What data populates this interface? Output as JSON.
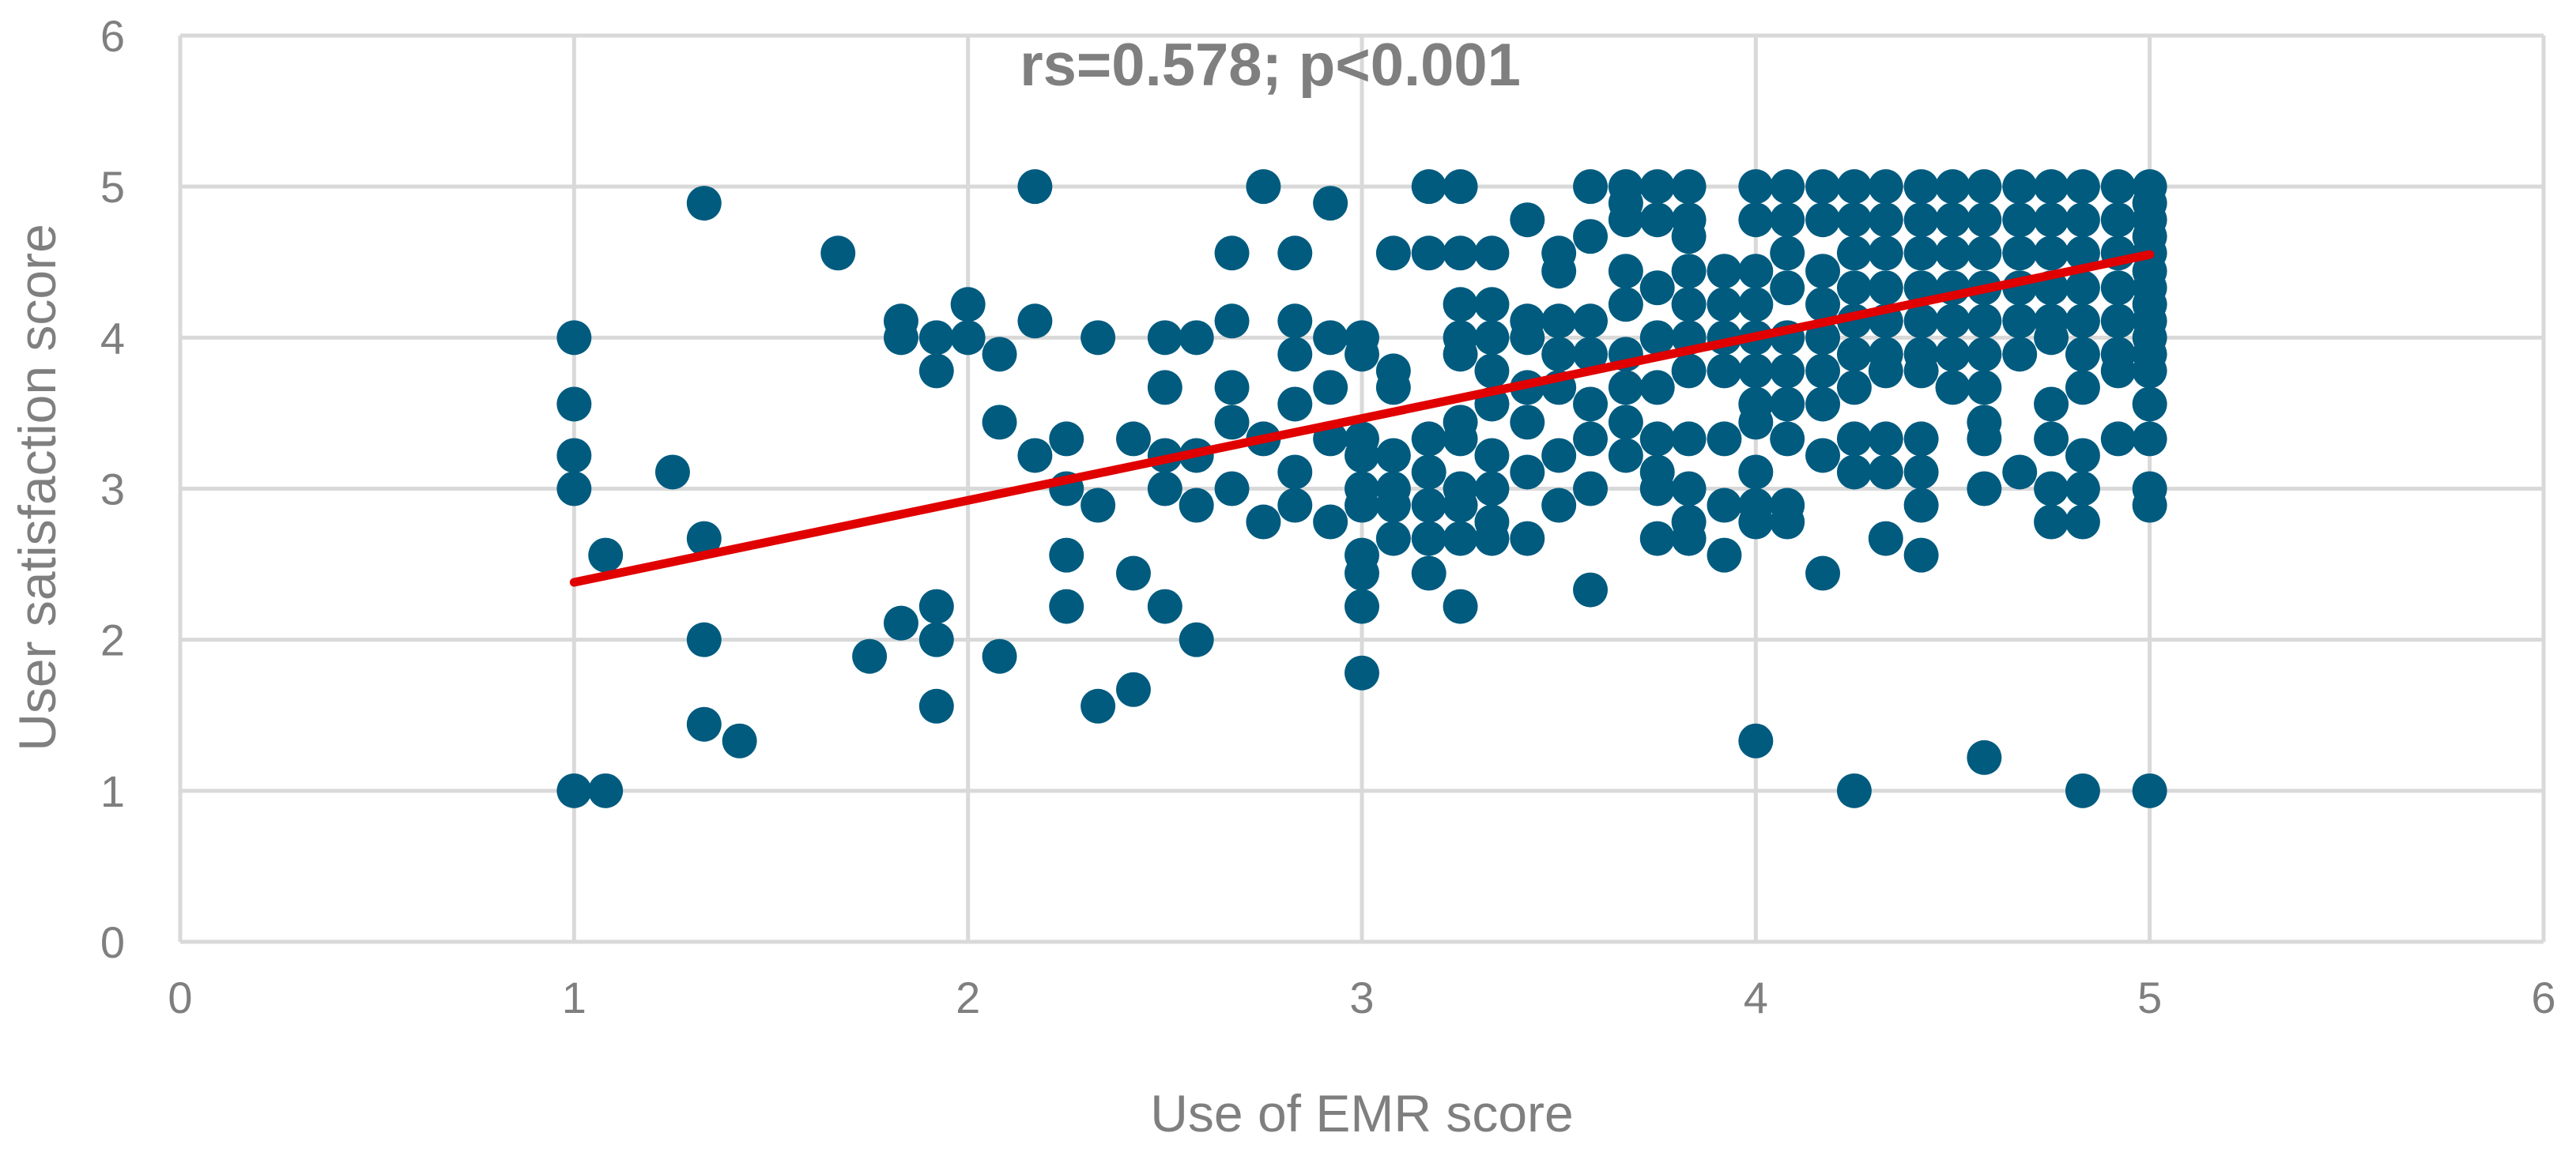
{
  "chart_data": {
    "type": "scatter",
    "title": "",
    "annotation": "rs=0.578; p<0.001",
    "xlabel": "Use of EMR score",
    "ylabel": "User satisfaction score",
    "xlim": [
      0,
      6
    ],
    "ylim": [
      0,
      6
    ],
    "xticks": [
      "0",
      "1",
      "2",
      "3",
      "4",
      "5",
      "6"
    ],
    "yticks": [
      "0",
      "1",
      "2",
      "3",
      "4",
      "5",
      "6"
    ],
    "grid": true,
    "legend": "none",
    "colors": {
      "points": "#005b7f",
      "trendline": "#e00000",
      "grid": "#d9d9d9",
      "text": "#7f7f7f"
    },
    "trendline": {
      "x": [
        1,
        5
      ],
      "y": [
        2.38,
        4.55
      ]
    },
    "points": [
      [
        1,
        4
      ],
      [
        1,
        3.56
      ],
      [
        1,
        3.22
      ],
      [
        1,
        3
      ],
      [
        1,
        1
      ],
      [
        1.08,
        2.56
      ],
      [
        1.08,
        1
      ],
      [
        1.25,
        3.11
      ],
      [
        1.33,
        4.89
      ],
      [
        1.33,
        2.67
      ],
      [
        1.33,
        2
      ],
      [
        1.33,
        1.44
      ],
      [
        1.42,
        1.33
      ],
      [
        1.67,
        4.56
      ],
      [
        1.75,
        1.89
      ],
      [
        1.83,
        4.11
      ],
      [
        1.83,
        4
      ],
      [
        1.83,
        2.11
      ],
      [
        1.92,
        4
      ],
      [
        1.92,
        3.78
      ],
      [
        1.92,
        2.22
      ],
      [
        1.92,
        2
      ],
      [
        1.92,
        1.56
      ],
      [
        2,
        4.22
      ],
      [
        2,
        4
      ],
      [
        2.08,
        3.89
      ],
      [
        2.08,
        3.44
      ],
      [
        2.08,
        1.89
      ],
      [
        2.17,
        5
      ],
      [
        2.17,
        4.11
      ],
      [
        2.17,
        3.22
      ],
      [
        2.25,
        3.33
      ],
      [
        2.25,
        3
      ],
      [
        2.25,
        2.56
      ],
      [
        2.25,
        2.22
      ],
      [
        2.33,
        4
      ],
      [
        2.33,
        2.89
      ],
      [
        2.33,
        1.56
      ],
      [
        2.42,
        3.33
      ],
      [
        2.42,
        2.44
      ],
      [
        2.42,
        1.67
      ],
      [
        2.5,
        4
      ],
      [
        2.5,
        3.67
      ],
      [
        2.5,
        3.22
      ],
      [
        2.5,
        3
      ],
      [
        2.5,
        2.22
      ],
      [
        2.58,
        4
      ],
      [
        2.58,
        3.22
      ],
      [
        2.58,
        2.89
      ],
      [
        2.58,
        2
      ],
      [
        2.67,
        4.56
      ],
      [
        2.67,
        4.11
      ],
      [
        2.67,
        3.67
      ],
      [
        2.67,
        3.44
      ],
      [
        2.67,
        3
      ],
      [
        2.75,
        5
      ],
      [
        2.75,
        3.33
      ],
      [
        2.75,
        2.78
      ],
      [
        2.83,
        4.56
      ],
      [
        2.83,
        4.11
      ],
      [
        2.83,
        3.89
      ],
      [
        2.83,
        3.56
      ],
      [
        2.83,
        3.11
      ],
      [
        2.83,
        2.89
      ],
      [
        2.92,
        4.89
      ],
      [
        2.92,
        4
      ],
      [
        2.92,
        3.67
      ],
      [
        2.92,
        3.33
      ],
      [
        2.92,
        2.78
      ],
      [
        3,
        4
      ],
      [
        3,
        3.89
      ],
      [
        3,
        3.33
      ],
      [
        3,
        3.22
      ],
      [
        3,
        3
      ],
      [
        3,
        2.89
      ],
      [
        3,
        2.56
      ],
      [
        3,
        2.44
      ],
      [
        3,
        2.22
      ],
      [
        3,
        1.78
      ],
      [
        3.08,
        4.56
      ],
      [
        3.08,
        3.78
      ],
      [
        3.08,
        3.67
      ],
      [
        3.08,
        3.22
      ],
      [
        3.08,
        3
      ],
      [
        3.08,
        2.89
      ],
      [
        3.08,
        2.67
      ],
      [
        3.17,
        5
      ],
      [
        3.17,
        4.56
      ],
      [
        3.17,
        3.33
      ],
      [
        3.17,
        3.11
      ],
      [
        3.17,
        2.89
      ],
      [
        3.17,
        2.67
      ],
      [
        3.17,
        2.44
      ],
      [
        3.25,
        5
      ],
      [
        3.25,
        4.56
      ],
      [
        3.25,
        4.22
      ],
      [
        3.25,
        4
      ],
      [
        3.25,
        3.89
      ],
      [
        3.25,
        3.44
      ],
      [
        3.25,
        3.33
      ],
      [
        3.25,
        3
      ],
      [
        3.25,
        2.89
      ],
      [
        3.25,
        2.67
      ],
      [
        3.25,
        2.22
      ],
      [
        3.33,
        4.56
      ],
      [
        3.33,
        4.22
      ],
      [
        3.33,
        4
      ],
      [
        3.33,
        3.78
      ],
      [
        3.33,
        3.56
      ],
      [
        3.33,
        3.22
      ],
      [
        3.33,
        3
      ],
      [
        3.33,
        2.78
      ],
      [
        3.33,
        2.67
      ],
      [
        3.42,
        4.78
      ],
      [
        3.42,
        4.11
      ],
      [
        3.42,
        4
      ],
      [
        3.42,
        3.67
      ],
      [
        3.42,
        3.44
      ],
      [
        3.42,
        3.11
      ],
      [
        3.42,
        2.67
      ],
      [
        3.5,
        4.56
      ],
      [
        3.5,
        4.44
      ],
      [
        3.5,
        4.11
      ],
      [
        3.5,
        3.89
      ],
      [
        3.5,
        3.67
      ],
      [
        3.5,
        3.22
      ],
      [
        3.5,
        2.89
      ],
      [
        3.58,
        5
      ],
      [
        3.58,
        4.67
      ],
      [
        3.58,
        4.11
      ],
      [
        3.58,
        3.89
      ],
      [
        3.58,
        3.56
      ],
      [
        3.58,
        3.33
      ],
      [
        3.58,
        3
      ],
      [
        3.58,
        2.33
      ],
      [
        3.67,
        5
      ],
      [
        3.67,
        4.89
      ],
      [
        3.67,
        4.78
      ],
      [
        3.67,
        4.44
      ],
      [
        3.67,
        4.22
      ],
      [
        3.67,
        3.89
      ],
      [
        3.67,
        3.67
      ],
      [
        3.67,
        3.44
      ],
      [
        3.67,
        3.22
      ],
      [
        3.75,
        5
      ],
      [
        3.75,
        4.78
      ],
      [
        3.75,
        4.33
      ],
      [
        3.75,
        4
      ],
      [
        3.75,
        3.67
      ],
      [
        3.75,
        3.33
      ],
      [
        3.75,
        3.11
      ],
      [
        3.75,
        3
      ],
      [
        3.75,
        2.67
      ],
      [
        3.83,
        5
      ],
      [
        3.83,
        4.78
      ],
      [
        3.83,
        4.67
      ],
      [
        3.83,
        4.44
      ],
      [
        3.83,
        4.22
      ],
      [
        3.83,
        4
      ],
      [
        3.83,
        3.78
      ],
      [
        3.83,
        3.33
      ],
      [
        3.83,
        3
      ],
      [
        3.83,
        2.78
      ],
      [
        3.83,
        2.67
      ],
      [
        3.92,
        4.44
      ],
      [
        3.92,
        4.22
      ],
      [
        3.92,
        4
      ],
      [
        3.92,
        3.78
      ],
      [
        3.92,
        3.33
      ],
      [
        3.92,
        2.89
      ],
      [
        3.92,
        2.56
      ],
      [
        4,
        5
      ],
      [
        4,
        4.78
      ],
      [
        4,
        4.44
      ],
      [
        4,
        4.22
      ],
      [
        4,
        4
      ],
      [
        4,
        3.78
      ],
      [
        4,
        3.56
      ],
      [
        4,
        3.44
      ],
      [
        4,
        3.11
      ],
      [
        4,
        2.89
      ],
      [
        4,
        2.78
      ],
      [
        4,
        1.33
      ],
      [
        4.08,
        5
      ],
      [
        4.08,
        4.78
      ],
      [
        4.08,
        4.56
      ],
      [
        4.08,
        4.33
      ],
      [
        4.08,
        4
      ],
      [
        4.08,
        3.78
      ],
      [
        4.08,
        3.56
      ],
      [
        4.08,
        3.33
      ],
      [
        4.08,
        2.89
      ],
      [
        4.08,
        2.78
      ],
      [
        4.17,
        5
      ],
      [
        4.17,
        4.78
      ],
      [
        4.17,
        4.44
      ],
      [
        4.17,
        4.22
      ],
      [
        4.17,
        4
      ],
      [
        4.17,
        3.78
      ],
      [
        4.17,
        3.56
      ],
      [
        4.17,
        3.22
      ],
      [
        4.17,
        2.44
      ],
      [
        4.25,
        5
      ],
      [
        4.25,
        4.78
      ],
      [
        4.25,
        4.56
      ],
      [
        4.25,
        4.33
      ],
      [
        4.25,
        4.11
      ],
      [
        4.25,
        3.89
      ],
      [
        4.25,
        3.67
      ],
      [
        4.25,
        3.33
      ],
      [
        4.25,
        3.11
      ],
      [
        4.25,
        1
      ],
      [
        4.33,
        5
      ],
      [
        4.33,
        4.78
      ],
      [
        4.33,
        4.56
      ],
      [
        4.33,
        4.33
      ],
      [
        4.33,
        4.11
      ],
      [
        4.33,
        3.89
      ],
      [
        4.33,
        3.78
      ],
      [
        4.33,
        3.33
      ],
      [
        4.33,
        3.11
      ],
      [
        4.33,
        2.67
      ],
      [
        4.42,
        5
      ],
      [
        4.42,
        4.78
      ],
      [
        4.42,
        4.56
      ],
      [
        4.42,
        4.33
      ],
      [
        4.42,
        4.11
      ],
      [
        4.42,
        3.89
      ],
      [
        4.42,
        3.78
      ],
      [
        4.42,
        3.33
      ],
      [
        4.42,
        3.11
      ],
      [
        4.42,
        2.89
      ],
      [
        4.42,
        2.56
      ],
      [
        4.5,
        5
      ],
      [
        4.5,
        4.78
      ],
      [
        4.5,
        4.56
      ],
      [
        4.5,
        4.33
      ],
      [
        4.5,
        4.11
      ],
      [
        4.5,
        3.89
      ],
      [
        4.5,
        3.67
      ],
      [
        4.58,
        5
      ],
      [
        4.58,
        4.78
      ],
      [
        4.58,
        4.56
      ],
      [
        4.58,
        4.33
      ],
      [
        4.58,
        4.11
      ],
      [
        4.58,
        3.89
      ],
      [
        4.58,
        3.67
      ],
      [
        4.58,
        3.44
      ],
      [
        4.58,
        3.33
      ],
      [
        4.58,
        3
      ],
      [
        4.58,
        1.22
      ],
      [
        4.67,
        5
      ],
      [
        4.67,
        4.78
      ],
      [
        4.67,
        4.56
      ],
      [
        4.67,
        4.33
      ],
      [
        4.67,
        4.11
      ],
      [
        4.67,
        3.89
      ],
      [
        4.67,
        3.11
      ],
      [
        4.75,
        5
      ],
      [
        4.75,
        4.78
      ],
      [
        4.75,
        4.56
      ],
      [
        4.75,
        4.33
      ],
      [
        4.75,
        4.11
      ],
      [
        4.75,
        4
      ],
      [
        4.75,
        3.56
      ],
      [
        4.75,
        3.33
      ],
      [
        4.75,
        3
      ],
      [
        4.75,
        2.78
      ],
      [
        4.83,
        5
      ],
      [
        4.83,
        4.78
      ],
      [
        4.83,
        4.56
      ],
      [
        4.83,
        4.33
      ],
      [
        4.83,
        4.11
      ],
      [
        4.83,
        3.89
      ],
      [
        4.83,
        3.67
      ],
      [
        4.83,
        3.22
      ],
      [
        4.83,
        3
      ],
      [
        4.83,
        2.78
      ],
      [
        4.83,
        1
      ],
      [
        4.92,
        5
      ],
      [
        4.92,
        4.78
      ],
      [
        4.92,
        4.56
      ],
      [
        4.92,
        4.33
      ],
      [
        4.92,
        4.11
      ],
      [
        4.92,
        3.89
      ],
      [
        4.92,
        3.78
      ],
      [
        4.92,
        3.33
      ],
      [
        5,
        5
      ],
      [
        5,
        4.89
      ],
      [
        5,
        4.78
      ],
      [
        5,
        4.67
      ],
      [
        5,
        4.56
      ],
      [
        5,
        4.44
      ],
      [
        5,
        4.33
      ],
      [
        5,
        4.22
      ],
      [
        5,
        4.11
      ],
      [
        5,
        4
      ],
      [
        5,
        3.89
      ],
      [
        5,
        3.78
      ],
      [
        5,
        3.56
      ],
      [
        5,
        3.33
      ],
      [
        5,
        3
      ],
      [
        5,
        2.89
      ],
      [
        5,
        1
      ]
    ]
  }
}
